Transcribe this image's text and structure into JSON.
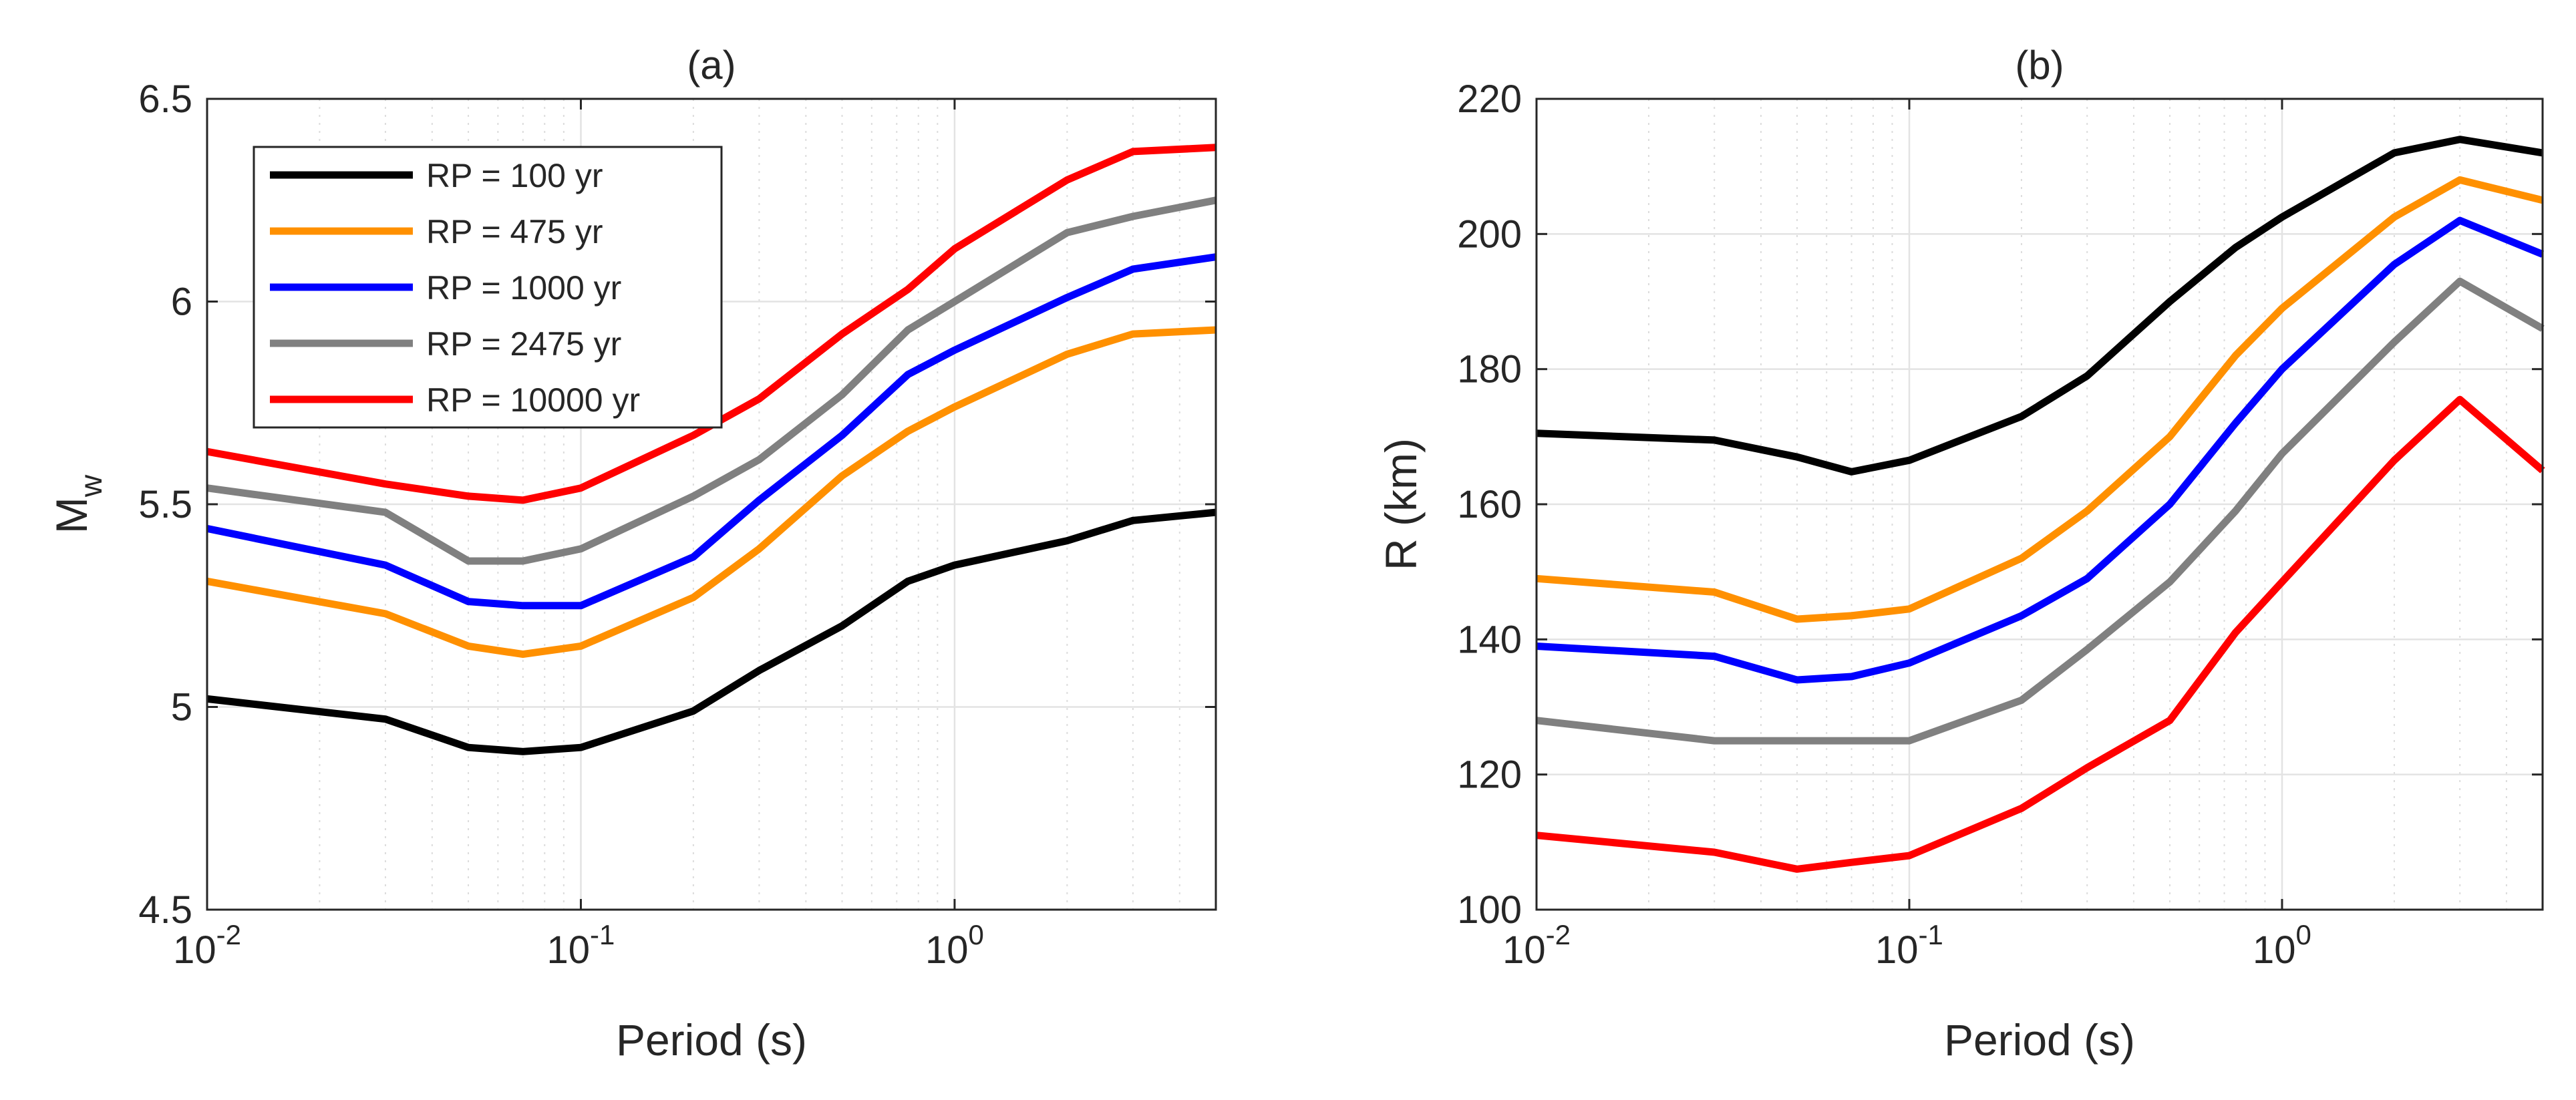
{
  "chart_data": [
    {
      "type": "line",
      "title": "(a)",
      "xlabel": "Period (s)",
      "ylabel": "M",
      "ylabel_subscript": "w",
      "xscale": "log",
      "xlim": [
        0.01,
        5
      ],
      "ylim": [
        4.5,
        6.5
      ],
      "grid": true,
      "legend_position": "top-left",
      "x_ticks": [
        {
          "value": 0.01,
          "base": "10",
          "exp": "-2"
        },
        {
          "value": 0.1,
          "base": "10",
          "exp": "-1"
        },
        {
          "value": 1,
          "base": "10",
          "exp": "0"
        }
      ],
      "y_ticks": [
        {
          "value": 4.5,
          "label": "4.5"
        },
        {
          "value": 5,
          "label": "5"
        },
        {
          "value": 5.5,
          "label": "5.5"
        },
        {
          "value": 6,
          "label": "6"
        },
        {
          "value": 6.5,
          "label": "6.5"
        }
      ],
      "x": [
        0.01,
        0.03,
        0.05,
        0.07,
        0.1,
        0.2,
        0.3,
        0.5,
        0.75,
        1,
        2,
        3,
        5
      ],
      "series": [
        {
          "name": "RP = 100 yr",
          "color": "#000000",
          "values": [
            5.02,
            4.97,
            4.9,
            4.89,
            4.9,
            4.99,
            5.09,
            5.2,
            5.31,
            5.35,
            5.41,
            5.46,
            5.48
          ]
        },
        {
          "name": "RP = 475 yr",
          "color": "#ff9000",
          "values": [
            5.31,
            5.23,
            5.15,
            5.13,
            5.15,
            5.27,
            5.39,
            5.57,
            5.68,
            5.74,
            5.87,
            5.92,
            5.93
          ]
        },
        {
          "name": "RP = 1000 yr",
          "color": "#0000ff",
          "values": [
            5.44,
            5.35,
            5.26,
            5.25,
            5.25,
            5.37,
            5.51,
            5.67,
            5.82,
            5.88,
            6.01,
            6.08,
            6.11
          ]
        },
        {
          "name": "RP = 2475 yr",
          "color": "#808080",
          "values": [
            5.54,
            5.48,
            5.36,
            5.36,
            5.39,
            5.52,
            5.61,
            5.77,
            5.93,
            6.0,
            6.17,
            6.21,
            6.25
          ]
        },
        {
          "name": "RP = 10000 yr",
          "color": "#ff0000",
          "values": [
            5.63,
            5.55,
            5.52,
            5.51,
            5.54,
            5.67,
            5.76,
            5.92,
            6.03,
            6.13,
            6.3,
            6.37,
            6.38
          ]
        }
      ]
    },
    {
      "type": "line",
      "title": "(b)",
      "xlabel": "Period (s)",
      "ylabel": "R (km)",
      "xscale": "log",
      "xlim": [
        0.01,
        5
      ],
      "ylim": [
        100,
        220
      ],
      "grid": true,
      "x_ticks": [
        {
          "value": 0.01,
          "base": "10",
          "exp": "-2"
        },
        {
          "value": 0.1,
          "base": "10",
          "exp": "-1"
        },
        {
          "value": 1,
          "base": "10",
          "exp": "0"
        }
      ],
      "y_ticks": [
        {
          "value": 100,
          "label": "100"
        },
        {
          "value": 120,
          "label": "120"
        },
        {
          "value": 140,
          "label": "140"
        },
        {
          "value": 160,
          "label": "160"
        },
        {
          "value": 180,
          "label": "180"
        },
        {
          "value": 200,
          "label": "200"
        },
        {
          "value": 220,
          "label": "220"
        }
      ],
      "x": [
        0.01,
        0.03,
        0.05,
        0.07,
        0.1,
        0.2,
        0.3,
        0.5,
        0.75,
        1,
        2,
        3,
        5
      ],
      "series": [
        {
          "name": "RP = 100 yr",
          "color": "#000000",
          "values": [
            170.5,
            169.5,
            167,
            164.8,
            166.5,
            173,
            179,
            190,
            198,
            202.5,
            212,
            214,
            212
          ]
        },
        {
          "name": "RP = 475 yr",
          "color": "#ff9000",
          "values": [
            149,
            147,
            143,
            143.5,
            144.5,
            152,
            159,
            170,
            182,
            189,
            202.5,
            208,
            205
          ]
        },
        {
          "name": "RP = 1000 yr",
          "color": "#0000ff",
          "values": [
            139,
            137.5,
            134,
            134.5,
            136.5,
            143.5,
            149,
            160,
            172,
            180,
            195.5,
            202,
            197
          ]
        },
        {
          "name": "RP = 2475 yr",
          "color": "#808080",
          "values": [
            128,
            125,
            125,
            125,
            125,
            131,
            138.5,
            148.5,
            159,
            167.5,
            184,
            193,
            186
          ]
        },
        {
          "name": "RP = 10000 yr",
          "color": "#ff0000",
          "values": [
            111,
            108.5,
            106,
            107,
            108,
            115,
            121,
            128,
            141,
            148.5,
            166.5,
            175.5,
            165
          ]
        }
      ]
    }
  ]
}
